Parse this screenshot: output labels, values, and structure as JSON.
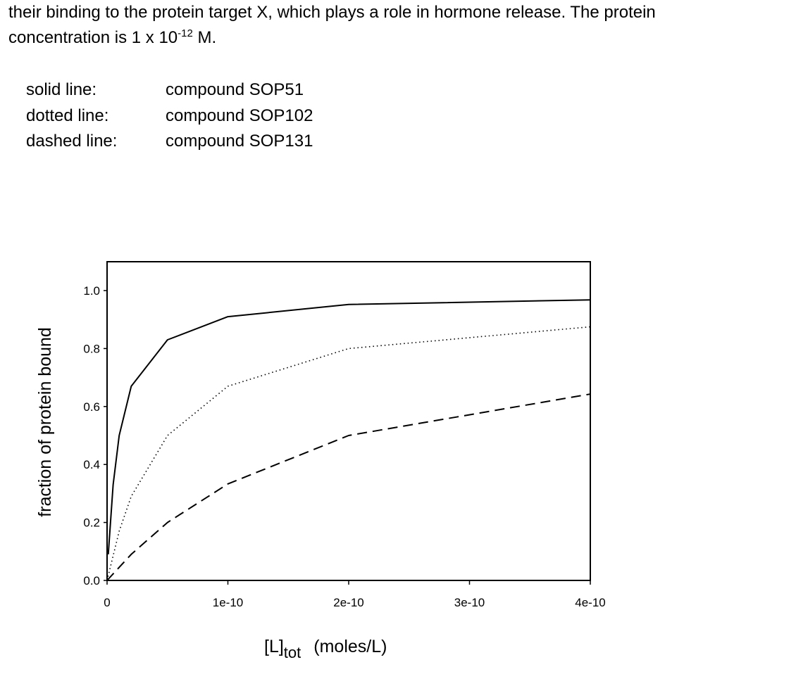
{
  "text": {
    "line1": "their binding to the protein target X, which plays a role in hormone release.  The protein",
    "line2_prefix": "concentration is 1 x 10",
    "line2_exponent": "-12",
    "line2_suffix": " M."
  },
  "legend": [
    {
      "key": "solid line:",
      "value": "compound SOP51"
    },
    {
      "key": "dotted line:",
      "value": "compound SOP102"
    },
    {
      "key": "dashed line:",
      "value": "compound SOP131"
    }
  ],
  "chart_data": {
    "type": "line",
    "ylabel": "fraction of protein bound",
    "xlabel_main": "[L]",
    "xlabel_sub": "tot",
    "xlabel_unit": "(moles/L)",
    "xlim": [
      0,
      4e-10
    ],
    "ylim": [
      0,
      1.1
    ],
    "x_ticks": [
      0,
      1e-10,
      2e-10,
      3e-10,
      4e-10
    ],
    "x_tick_labels": [
      "0",
      "1e-10",
      "2e-10",
      "3e-10",
      "4e-10"
    ],
    "y_ticks": [
      0,
      0.2,
      0.4,
      0.6,
      0.8,
      1.0
    ],
    "y_tick_labels": [
      "0.0",
      "0.2",
      "0.4",
      "0.6",
      "0.8",
      "1.0"
    ],
    "grid": false,
    "series": [
      {
        "style": "solid",
        "x": [
          1e-12,
          5e-12,
          1e-11,
          2e-11,
          5e-11,
          1e-10,
          2e-10,
          4e-10
        ],
        "y": [
          0.09,
          0.33,
          0.5,
          0.67,
          0.83,
          0.91,
          0.952,
          0.968
        ]
      },
      {
        "style": "dotted",
        "x": [
          0,
          1e-11,
          2e-11,
          5e-11,
          1e-10,
          2e-10,
          4e-10
        ],
        "y": [
          0.0,
          0.17,
          0.29,
          0.5,
          0.67,
          0.8,
          0.875
        ]
      },
      {
        "style": "dashed",
        "x": [
          0,
          2e-11,
          5e-11,
          1e-10,
          2e-10,
          4e-10
        ],
        "y": [
          0.0,
          0.09,
          0.2,
          0.333,
          0.5,
          0.643
        ]
      }
    ]
  }
}
